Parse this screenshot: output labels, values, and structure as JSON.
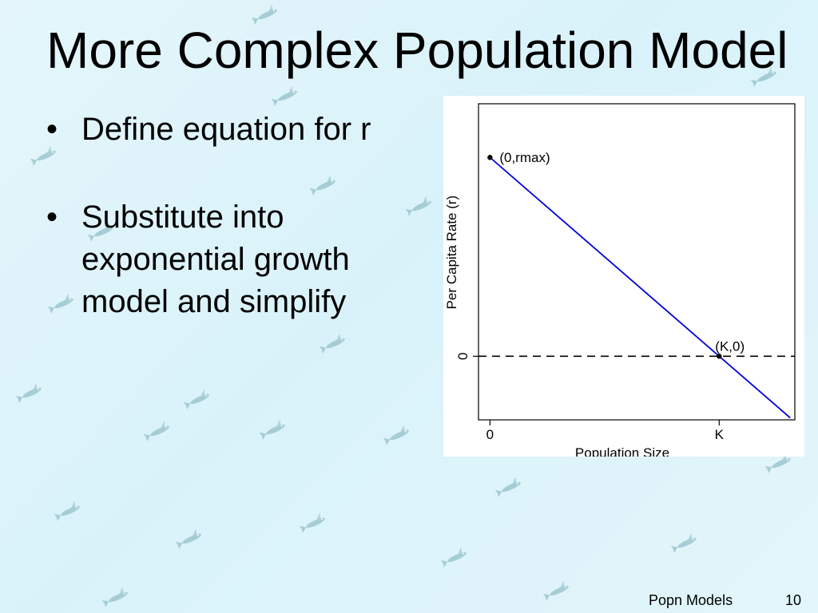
{
  "slide": {
    "title": "More Complex Population Model",
    "bullet_symbol": "•",
    "bullets": [
      {
        "lines": [
          "Define equation for r"
        ]
      },
      {
        "lines": [
          "Substitute into",
          "exponential growth",
          "model and simplify"
        ]
      }
    ]
  },
  "chart_data": {
    "type": "line",
    "title": "",
    "xlabel": "Population Size",
    "ylabel": "Per Capita Rate (r)",
    "xlim": [
      -0.05,
      1.33
    ],
    "ylim": [
      -0.32,
      1.27
    ],
    "x_ticks": [
      {
        "value": 0,
        "label": "0"
      },
      {
        "value": 1,
        "label": "K"
      }
    ],
    "y_ticks": [
      {
        "value": 0,
        "label": "0"
      }
    ],
    "series": [
      {
        "x": [
          0,
          1.31
        ],
        "y": [
          1,
          -0.31
        ],
        "color": "#0000dd"
      }
    ],
    "reference_lines": [
      {
        "axis": "y",
        "value": 0,
        "style": "dashed"
      }
    ],
    "points": [
      {
        "x": 0,
        "y": 1,
        "label": "(0,rmax)"
      },
      {
        "x": 1,
        "y": 0,
        "label": "(K,0)"
      }
    ],
    "grid": false,
    "legend": "none"
  },
  "footer": {
    "label": "Popn Models",
    "page_number": "10"
  }
}
